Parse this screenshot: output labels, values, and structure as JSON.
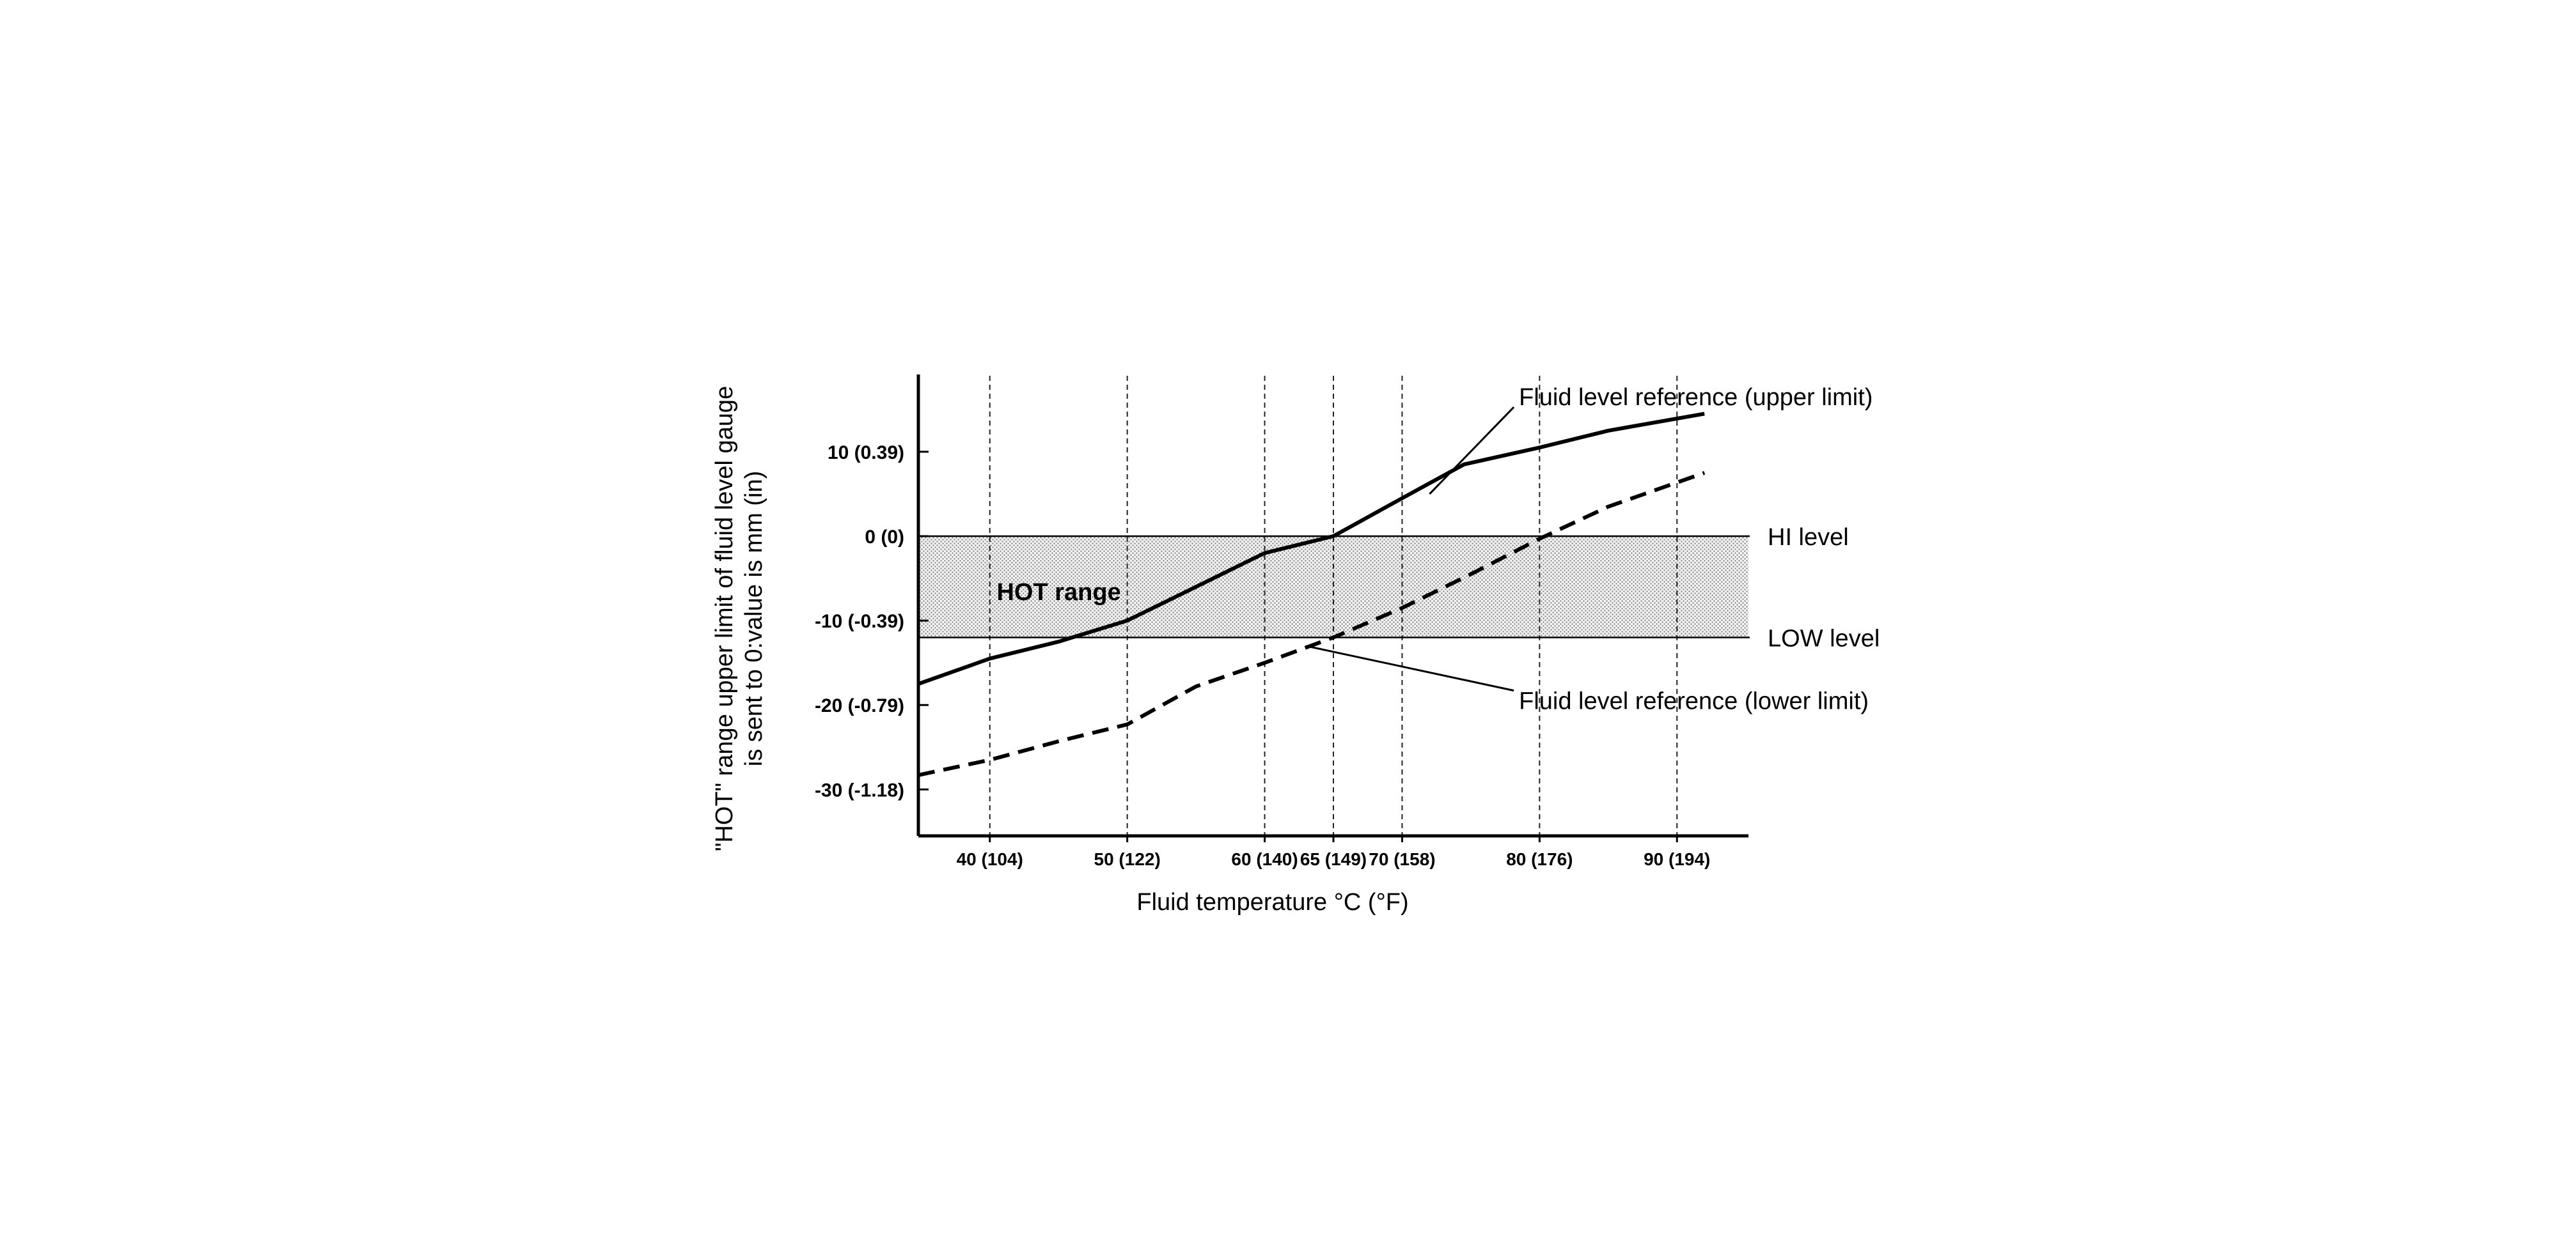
{
  "chart_data": {
    "type": "line",
    "title": "",
    "xlabel": "Fluid temperature °C (°F)",
    "ylabel_lines": [
      "\"HOT\" range upper limit of fluid level gauge",
      "is sent to 0:value is mm (in)"
    ],
    "xlim": [
      34.8,
      95.2
    ],
    "ylim": [
      -35.5,
      19
    ],
    "x_ticks": [
      {
        "value": 40,
        "label": "40 (104)"
      },
      {
        "value": 50,
        "label": "50 (122)"
      },
      {
        "value": 60,
        "label": "60 (140)"
      },
      {
        "value": 65,
        "label": "65 (149)"
      },
      {
        "value": 70,
        "label": "70 (158)"
      },
      {
        "value": 80,
        "label": "80 (176)"
      },
      {
        "value": 90,
        "label": "90 (194)"
      }
    ],
    "y_ticks": [
      {
        "value": 10,
        "label": "10 (0.39)"
      },
      {
        "value": 0,
        "label": "0 (0)"
      },
      {
        "value": -10,
        "label": "-10 (-0.39)"
      },
      {
        "value": -20,
        "label": "-20 (-0.79)"
      },
      {
        "value": -30,
        "label": "-30 (-1.18)"
      }
    ],
    "vertical_gridlines": "dashed at labeled x ticks",
    "band": {
      "label": "HOT range",
      "from": -12,
      "to": 0,
      "pattern": "stipple"
    },
    "reference_lines": [
      {
        "label": "HI level",
        "y": 0
      },
      {
        "label": "LOW level",
        "y": -12
      }
    ],
    "series": [
      {
        "name": "Fluid level reference (upper limit)",
        "style": "solid",
        "x": [
          34.8,
          40,
          45,
          50,
          55,
          60,
          65,
          70,
          74.5,
          80,
          85,
          92
        ],
        "y": [
          -17.5,
          -14.5,
          -12.5,
          -10,
          -6,
          -2,
          0,
          4.5,
          8.5,
          10.5,
          12.5,
          14.5
        ]
      },
      {
        "name": "Fluid level reference (lower limit)",
        "style": "dashed",
        "x": [
          34.8,
          40,
          45,
          50,
          55,
          60,
          65,
          70,
          75,
          80,
          85,
          92
        ],
        "y": [
          -28.3,
          -26.5,
          -24.3,
          -22.3,
          -17.8,
          -15,
          -12,
          -8.5,
          -4.5,
          -0.3,
          3.5,
          7.5
        ]
      }
    ],
    "series_annotations": [
      {
        "series": 0,
        "text": "Fluid level reference (upper limit)",
        "text_x": 78.5,
        "text_y": 16.5,
        "point_x": 72,
        "point_y": 5
      },
      {
        "series": 1,
        "text": "Fluid level reference (lower limit)",
        "text_x": 78.5,
        "text_y": -19.5,
        "point_x": 63,
        "point_y": -13
      }
    ],
    "grid": false,
    "legend": "none (series labeled by callouts)"
  }
}
